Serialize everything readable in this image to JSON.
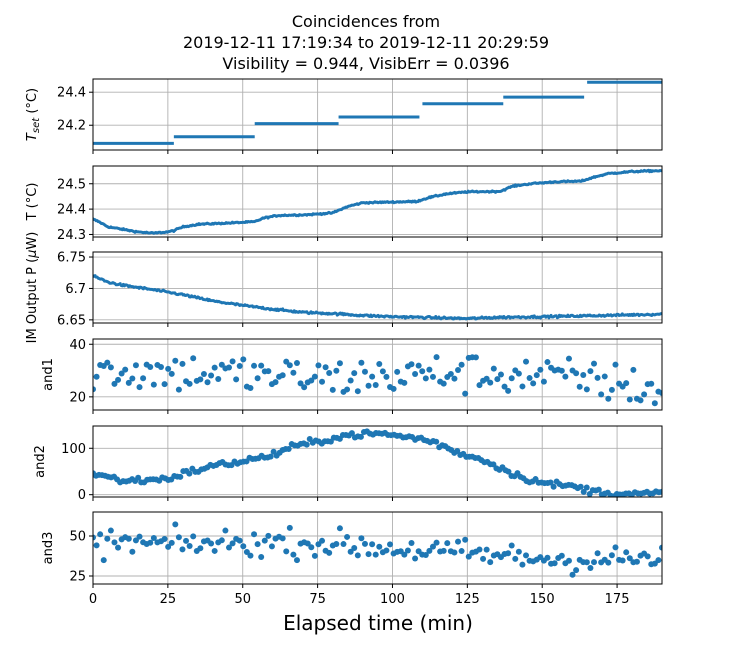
{
  "title": {
    "line1": "Coincidences from",
    "line2": "2019-12-11 17:19:34 to 2019-12-11 20:29:59",
    "line3": "Visibility = 0.944, VisibErr = 0.0396"
  },
  "colors": {
    "series": "#1f77b4",
    "grid": "#b0b0b0",
    "axes": "#000000"
  },
  "chart_data": {
    "type": "scatter",
    "shared_x": {
      "label": "Elapsed time (min)",
      "ticks": [
        0,
        25,
        50,
        75,
        100,
        125,
        150,
        175
      ],
      "range": [
        0,
        190
      ]
    },
    "panels": [
      {
        "id": "tset",
        "ylabel": "T_set (°C)",
        "ylim": [
          24.05,
          24.48
        ],
        "yticks": [
          24.2,
          24.4
        ],
        "grid": true,
        "style": "segments",
        "segments": [
          {
            "x": [
              0,
              27
            ],
            "y": 24.09
          },
          {
            "x": [
              27,
              54
            ],
            "y": 24.13
          },
          {
            "x": [
              54,
              82
            ],
            "y": 24.21
          },
          {
            "x": [
              82,
              109
            ],
            "y": 24.25
          },
          {
            "x": [
              110,
              137
            ],
            "y": 24.33
          },
          {
            "x": [
              137,
              164
            ],
            "y": 24.37
          },
          {
            "x": [
              165,
              190
            ],
            "y": 24.46
          }
        ]
      },
      {
        "id": "temp",
        "ylabel": "T (°C)",
        "ylim": [
          24.29,
          24.57
        ],
        "yticks": [
          24.3,
          24.4,
          24.5
        ],
        "grid": true,
        "style": "dense",
        "noise": 0.002,
        "anchors": [
          [
            0,
            24.36
          ],
          [
            2,
            24.35
          ],
          [
            5,
            24.33
          ],
          [
            10,
            24.32
          ],
          [
            15,
            24.31
          ],
          [
            20,
            24.305
          ],
          [
            25,
            24.31
          ],
          [
            27,
            24.315
          ],
          [
            30,
            24.33
          ],
          [
            35,
            24.34
          ],
          [
            45,
            24.345
          ],
          [
            54,
            24.35
          ],
          [
            57,
            24.365
          ],
          [
            62,
            24.375
          ],
          [
            72,
            24.378
          ],
          [
            80,
            24.385
          ],
          [
            85,
            24.41
          ],
          [
            90,
            24.425
          ],
          [
            100,
            24.428
          ],
          [
            108,
            24.43
          ],
          [
            112,
            24.445
          ],
          [
            118,
            24.46
          ],
          [
            125,
            24.468
          ],
          [
            136,
            24.47
          ],
          [
            140,
            24.49
          ],
          [
            146,
            24.5
          ],
          [
            155,
            24.508
          ],
          [
            163,
            24.51
          ],
          [
            167,
            24.525
          ],
          [
            172,
            24.54
          ],
          [
            180,
            24.548
          ],
          [
            190,
            24.552
          ]
        ]
      },
      {
        "id": "power",
        "ylabel": "IM Output P (μW)",
        "ylim": [
          6.645,
          6.758
        ],
        "yticks": [
          6.65,
          6.7,
          6.75
        ],
        "grid": true,
        "style": "dense",
        "noise": 0.0012,
        "anchors": [
          [
            0,
            6.72
          ],
          [
            5,
            6.71
          ],
          [
            10,
            6.705
          ],
          [
            20,
            6.698
          ],
          [
            30,
            6.69
          ],
          [
            40,
            6.68
          ],
          [
            50,
            6.673
          ],
          [
            60,
            6.667
          ],
          [
            70,
            6.662
          ],
          [
            80,
            6.66
          ],
          [
            90,
            6.657
          ],
          [
            100,
            6.655
          ],
          [
            110,
            6.654
          ],
          [
            125,
            6.652
          ],
          [
            135,
            6.654
          ],
          [
            150,
            6.655
          ],
          [
            170,
            6.657
          ],
          [
            190,
            6.659
          ]
        ]
      },
      {
        "id": "and1",
        "ylabel": "and1",
        "ylim": [
          15,
          42
        ],
        "yticks": [
          20,
          40
        ],
        "grid": true,
        "style": "points",
        "noise": 5.5,
        "count": 160,
        "anchors": [
          [
            0,
            30
          ],
          [
            40,
            29
          ],
          [
            80,
            27
          ],
          [
            120,
            29
          ],
          [
            150,
            28
          ],
          [
            170,
            26
          ],
          [
            190,
            22
          ]
        ]
      },
      {
        "id": "and2",
        "ylabel": "and2",
        "ylim": [
          -5,
          148
        ],
        "yticks": [
          0,
          100
        ],
        "grid": true,
        "style": "points",
        "noise": 5,
        "count": 190,
        "anchors": [
          [
            0,
            45
          ],
          [
            5,
            38
          ],
          [
            10,
            30
          ],
          [
            20,
            32
          ],
          [
            25,
            35
          ],
          [
            30,
            45
          ],
          [
            40,
            62
          ],
          [
            50,
            72
          ],
          [
            60,
            85
          ],
          [
            65,
            100
          ],
          [
            75,
            115
          ],
          [
            85,
            128
          ],
          [
            95,
            132
          ],
          [
            110,
            120
          ],
          [
            115,
            110
          ],
          [
            120,
            95
          ],
          [
            130,
            75
          ],
          [
            135,
            62
          ],
          [
            140,
            45
          ],
          [
            150,
            25
          ],
          [
            160,
            18
          ],
          [
            165,
            10
          ],
          [
            170,
            5
          ],
          [
            180,
            1
          ],
          [
            190,
            3
          ]
        ]
      },
      {
        "id": "and3",
        "ylabel": "and3",
        "ylim": [
          20,
          65
        ],
        "yticks": [
          25,
          50
        ],
        "grid": true,
        "style": "points",
        "noise": 6,
        "count": 160,
        "anchors": [
          [
            0,
            46
          ],
          [
            30,
            45
          ],
          [
            60,
            46
          ],
          [
            80,
            45
          ],
          [
            110,
            41
          ],
          [
            140,
            37
          ],
          [
            160,
            35
          ],
          [
            190,
            36
          ]
        ]
      }
    ]
  }
}
